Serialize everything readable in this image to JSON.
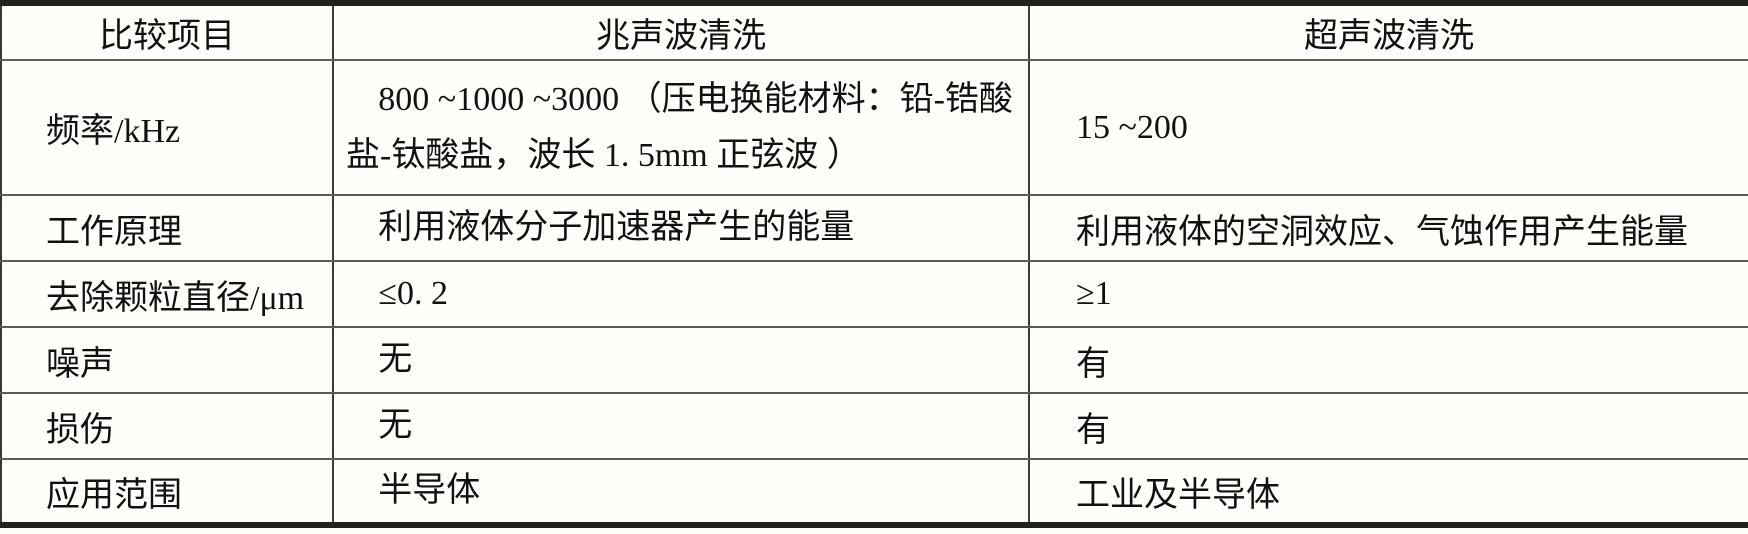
{
  "table": {
    "columns": [
      "比较项目",
      "兆声波清洗",
      "超声波清洗"
    ],
    "rows": [
      {
        "item": "频率/kHz",
        "megasonic": "800 ~1000 ~3000 （压电换能材料：铅-锆酸盐-钛酸盐，波长 1. 5mm 正弦波 ）",
        "ultrasonic": "15 ~200"
      },
      {
        "item": "工作原理",
        "megasonic": "利用液体分子加速器产生的能量",
        "ultrasonic": "利用液体的空洞效应、气蚀作用产生能量"
      },
      {
        "item": "去除颗粒直径/μm",
        "megasonic": "≤0. 2",
        "ultrasonic": "≥1"
      },
      {
        "item": "噪声",
        "megasonic": "无",
        "ultrasonic": "有"
      },
      {
        "item": "损伤",
        "megasonic": "无",
        "ultrasonic": "有"
      },
      {
        "item": "应用范围",
        "megasonic": "半导体",
        "ultrasonic": "工业及半导体"
      }
    ],
    "colors": {
      "background": "#fffefa",
      "text": "#111111",
      "border_thick": "#22221a",
      "border_vline": "#3a3a32",
      "border_hline": "#5d5d51"
    }
  }
}
